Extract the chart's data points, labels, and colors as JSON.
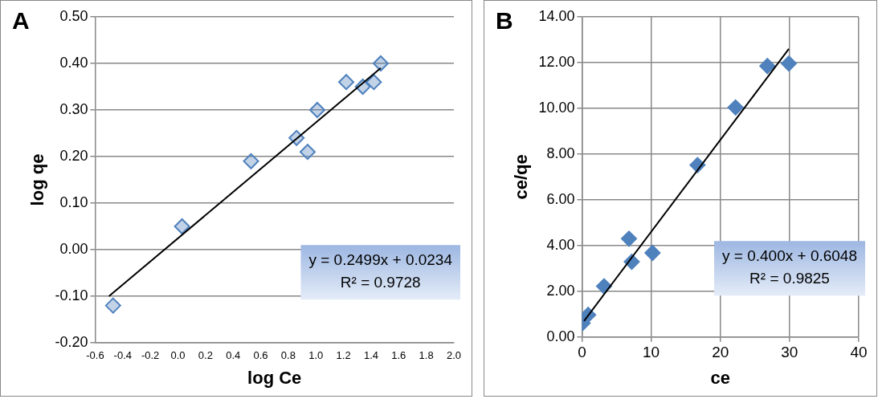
{
  "chart_data": [
    {
      "type": "scatter",
      "title": "A",
      "xlabel": "log Ce",
      "ylabel": "log qe",
      "xlim": [
        -0.6,
        2.0
      ],
      "xticks": [
        -0.6,
        -0.4,
        -0.2,
        {
          "value": 0,
          "label": "0.0"
        },
        0.2,
        0.4,
        0.6,
        0.8,
        {
          "value": 1,
          "label": "1.0"
        },
        1.2,
        1.4,
        1.6,
        1.8,
        {
          "value": 2,
          "label": "2.0"
        }
      ],
      "ylim": [
        -0.2,
        0.5
      ],
      "yticks": [
        {
          "value": -0.2,
          "label": "-0.20"
        },
        {
          "value": -0.1,
          "label": "-0.10"
        },
        {
          "value": 0,
          "label": "0.00"
        },
        {
          "value": 0.1,
          "label": "0.10"
        },
        {
          "value": 0.2,
          "label": "0.20"
        },
        {
          "value": 0.3,
          "label": "0.30"
        },
        {
          "value": 0.4,
          "label": "0.40"
        },
        {
          "value": 0.5,
          "label": "0.50"
        }
      ],
      "grid": "y",
      "legend": false,
      "marker": "diamond",
      "annotations": [
        "y = 0.2499x + 0.0234",
        "R² = 0.9728"
      ],
      "series": [
        {
          "color": "#4f81bd",
          "x": [
            -0.47,
            0.03,
            0.53,
            0.86,
            0.94,
            1.01,
            1.22,
            1.34,
            1.42,
            1.47
          ],
          "values": [
            -0.12,
            0.05,
            0.19,
            0.24,
            0.21,
            0.3,
            0.36,
            0.35,
            0.36,
            0.4
          ]
        },
        {
          "type": "line",
          "color": "#000000",
          "marker": "none",
          "x": [
            -0.5,
            1.47
          ],
          "values": [
            -0.1,
            0.39
          ]
        }
      ]
    },
    {
      "type": "scatter",
      "title": "B",
      "xlabel": "ce",
      "ylabel": "ce/qe",
      "xlim": [
        0,
        40
      ],
      "xticks": [
        0,
        10,
        20,
        30,
        40
      ],
      "ylim": [
        0,
        14
      ],
      "yticks": [
        {
          "value": 0,
          "label": "0.00"
        },
        {
          "value": 2,
          "label": "2.00"
        },
        {
          "value": 4,
          "label": "4.00"
        },
        {
          "value": 6,
          "label": "6.00"
        },
        {
          "value": 8,
          "label": "8.00"
        },
        {
          "value": 10,
          "label": "10.00"
        },
        {
          "value": 12,
          "label": "12.00"
        },
        {
          "value": 14,
          "label": "14.00"
        }
      ],
      "grid": true,
      "legend": false,
      "marker": "diamond",
      "annotations": [
        "y = 0.400x + 0.6048",
        "R² = 0.9825"
      ],
      "series": [
        {
          "color": "#4f81bd",
          "x": [
            0.1,
            0.9,
            3.2,
            6.8,
            7.2,
            10.2,
            16.7,
            22.2,
            26.8,
            29.9
          ],
          "values": [
            0.61,
            0.97,
            2.22,
            4.3,
            3.29,
            3.68,
            7.52,
            10.04,
            11.85,
            11.96
          ]
        },
        {
          "type": "line",
          "color": "#000000",
          "marker": "none",
          "x": [
            0.3,
            29.9
          ],
          "values": [
            0.7,
            12.6
          ]
        }
      ]
    }
  ]
}
